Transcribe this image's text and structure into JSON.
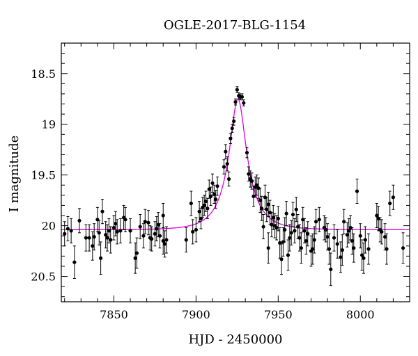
{
  "chart_data": {
    "type": "scatter",
    "title": "OGLE-2017-BLG-1154",
    "xlabel": "HJD - 2450000",
    "ylabel": "I magnitude",
    "xlim": [
      7818,
      8030
    ],
    "ylim": [
      20.75,
      18.2
    ],
    "y_inverted": true,
    "x_ticks": [
      7850,
      7900,
      7950,
      8000
    ],
    "y_ticks": [
      18.5,
      19,
      19.5,
      20,
      20.5
    ],
    "y_tick_labels": [
      "18.5",
      "19",
      "19.5",
      "20",
      "20.5"
    ],
    "grid": false,
    "colors": {
      "points": "#000000",
      "model": "#e000e0"
    },
    "model": {
      "baseline": 20.04,
      "peak_mag": 18.75,
      "t0": 7925.5,
      "u0": 0.35,
      "tE": 15
    },
    "series": [
      {
        "type": "scatter",
        "points": [
          [
            7820,
            20.08,
            0.12
          ],
          [
            7822,
            20.03,
            0.12
          ],
          [
            7824,
            20.05,
            0.12
          ],
          [
            7826,
            20.36,
            0.16
          ],
          [
            7829,
            19.95,
            0.12
          ],
          [
            7833,
            20.12,
            0.13
          ],
          [
            7835,
            20.12,
            0.13
          ],
          [
            7837,
            20.2,
            0.14
          ],
          [
            7838,
            20.11,
            0.13
          ],
          [
            7840,
            19.94,
            0.12
          ],
          [
            7841,
            20.07,
            0.12
          ],
          [
            7842,
            20.32,
            0.16
          ],
          [
            7843,
            19.86,
            0.12
          ],
          [
            7845,
            20.09,
            0.13
          ],
          [
            7846,
            20.12,
            0.13
          ],
          [
            7847,
            20.05,
            0.12
          ],
          [
            7848,
            20.14,
            0.13
          ],
          [
            7850,
            20.02,
            0.12
          ],
          [
            7851,
            19.98,
            0.12
          ],
          [
            7852,
            20.06,
            0.12
          ],
          [
            7854,
            20.05,
            0.12
          ],
          [
            7856,
            19.92,
            0.12
          ],
          [
            7857,
            19.94,
            0.12
          ],
          [
            7860,
            20.05,
            0.12
          ],
          [
            7863,
            20.32,
            0.15
          ],
          [
            7864,
            20.27,
            0.15
          ],
          [
            7866,
            20.01,
            0.12
          ],
          [
            7868,
            20.1,
            0.12
          ],
          [
            7869,
            19.96,
            0.12
          ],
          [
            7871,
            19.97,
            0.12
          ],
          [
            7872,
            20.12,
            0.12
          ],
          [
            7873,
            20.13,
            0.12
          ],
          [
            7875,
            20.08,
            0.12
          ],
          [
            7876,
            20.03,
            0.12
          ],
          [
            7877,
            19.99,
            0.12
          ],
          [
            7878,
            20.1,
            0.12
          ],
          [
            7880,
            19.9,
            0.12
          ],
          [
            7880,
            20.15,
            0.13
          ],
          [
            7881,
            20.18,
            0.13
          ],
          [
            7882,
            20.14,
            0.13
          ],
          [
            7894,
            20.14,
            0.12
          ],
          [
            7897,
            19.78,
            0.12
          ],
          [
            7898,
            20.06,
            0.12
          ],
          [
            7900,
            20.04,
            0.12
          ],
          [
            7902,
            19.86,
            0.1
          ],
          [
            7903,
            19.93,
            0.1
          ],
          [
            7904,
            19.82,
            0.1
          ],
          [
            7905,
            19.8,
            0.1
          ],
          [
            7906,
            19.76,
            0.1
          ],
          [
            7907,
            19.83,
            0.1
          ],
          [
            7908,
            19.64,
            0.09
          ],
          [
            7909,
            19.71,
            0.09
          ],
          [
            7910,
            19.58,
            0.09
          ],
          [
            7911,
            19.69,
            0.09
          ],
          [
            7912,
            19.74,
            0.09
          ],
          [
            7913,
            19.61,
            0.09
          ],
          [
            7917,
            19.42,
            0.07
          ],
          [
            7918,
            19.27,
            0.07
          ],
          [
            7919,
            19.39,
            0.07
          ],
          [
            7920,
            19.54,
            0.07
          ],
          [
            7921,
            19.14,
            0.05
          ],
          [
            7922,
            19.04,
            0.04
          ],
          [
            7923,
            18.97,
            0.04
          ],
          [
            7924,
            18.78,
            0.03
          ],
          [
            7925,
            18.66,
            0.03
          ],
          [
            7926,
            18.72,
            0.03
          ],
          [
            7927,
            18.73,
            0.03
          ],
          [
            7928,
            18.73,
            0.03
          ],
          [
            7929,
            18.79,
            0.03
          ],
          [
            7931,
            19.28,
            0.05
          ],
          [
            7932,
            19.49,
            0.07
          ],
          [
            7933,
            19.54,
            0.08
          ],
          [
            7934,
            19.56,
            0.08
          ],
          [
            7935,
            19.71,
            0.1
          ],
          [
            7936,
            19.62,
            0.1
          ],
          [
            7937,
            19.6,
            0.1
          ],
          [
            7938,
            19.63,
            0.1
          ],
          [
            7939,
            19.75,
            0.12
          ],
          [
            7940,
            19.83,
            0.12
          ],
          [
            7941,
            20.01,
            0.12
          ],
          [
            7942,
            19.72,
            0.12
          ],
          [
            7943,
            19.84,
            0.12
          ],
          [
            7944,
            19.79,
            0.12
          ],
          [
            7944,
            20.22,
            0.15
          ],
          [
            7945,
            19.87,
            0.12
          ],
          [
            7946,
            19.99,
            0.12
          ],
          [
            7947,
            19.92,
            0.12
          ],
          [
            7948,
            20.0,
            0.12
          ],
          [
            7949,
            20.02,
            0.12
          ],
          [
            7950,
            19.93,
            0.12
          ],
          [
            7951,
            20.17,
            0.15
          ],
          [
            7952,
            20.33,
            0.15
          ],
          [
            7953,
            20.16,
            0.14
          ],
          [
            7954,
            20.04,
            0.12
          ],
          [
            7955,
            19.88,
            0.12
          ],
          [
            7956,
            20.29,
            0.15
          ],
          [
            7957,
            20.12,
            0.13
          ],
          [
            7958,
            20.07,
            0.12
          ],
          [
            7959,
            19.89,
            0.12
          ],
          [
            7960,
            20.05,
            0.12
          ],
          [
            7961,
            19.84,
            0.12
          ],
          [
            7962,
            20.01,
            0.12
          ],
          [
            7963,
            20.12,
            0.13
          ],
          [
            7964,
            20.22,
            0.15
          ],
          [
            7965,
            19.94,
            0.12
          ],
          [
            7966,
            20.05,
            0.12
          ],
          [
            7967,
            20.15,
            0.13
          ],
          [
            7968,
            20.08,
            0.12
          ],
          [
            7970,
            20.25,
            0.15
          ],
          [
            7971,
            20.23,
            0.15
          ],
          [
            7972,
            20.14,
            0.13
          ],
          [
            7973,
            19.96,
            0.12
          ],
          [
            7975,
            19.94,
            0.12
          ],
          [
            7978,
            20.02,
            0.12
          ],
          [
            7979,
            20.04,
            0.12
          ],
          [
            7980,
            20.11,
            0.13
          ],
          [
            7981,
            20.23,
            0.15
          ],
          [
            7982,
            20.43,
            0.16
          ],
          [
            7984,
            20.12,
            0.13
          ],
          [
            7986,
            20.18,
            0.14
          ],
          [
            7988,
            20.31,
            0.15
          ],
          [
            7989,
            20.24,
            0.15
          ],
          [
            7990,
            19.96,
            0.12
          ],
          [
            7992,
            20.09,
            0.12
          ],
          [
            7993,
            20.05,
            0.12
          ],
          [
            7994,
            20.02,
            0.12
          ],
          [
            7995,
            20.15,
            0.13
          ],
          [
            7996,
            20.22,
            0.14
          ],
          [
            7998,
            19.66,
            0.12
          ],
          [
            8000,
            20.1,
            0.12
          ],
          [
            8001,
            20.29,
            0.15
          ],
          [
            8002,
            20.32,
            0.15
          ],
          [
            8003,
            20.14,
            0.13
          ],
          [
            8005,
            20.23,
            0.15
          ],
          [
            8010,
            19.9,
            0.12
          ],
          [
            8011,
            19.93,
            0.12
          ],
          [
            8012,
            20.04,
            0.12
          ],
          [
            8013,
            20.06,
            0.12
          ],
          [
            8015,
            20.11,
            0.13
          ],
          [
            8016,
            20.23,
            0.15
          ],
          [
            8018,
            19.78,
            0.12
          ],
          [
            8020,
            19.72,
            0.12
          ],
          [
            8026,
            20.22,
            0.15
          ]
        ]
      }
    ]
  }
}
